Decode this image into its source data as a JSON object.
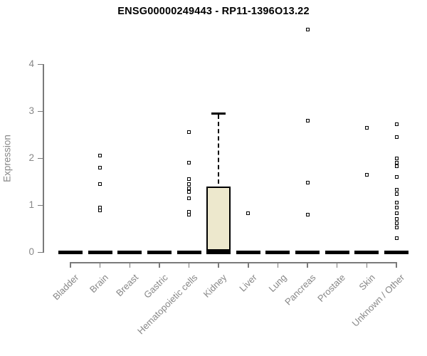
{
  "title": "ENSG00000249443 - RP11-1396O13.22",
  "colors": {
    "title_text": "#000000",
    "axis_text": "#878787",
    "axis_line": "#7a7a7a",
    "box_fill": "#EDE8CD",
    "ink": "#000000",
    "background": "#ffffff"
  },
  "chart_data": {
    "type": "boxplot",
    "title": "ENSG00000249443 - RP11-1396O13.22",
    "xlabel": "",
    "ylabel": "Expression",
    "ylim": [
      0,
      4
    ],
    "yticks": [
      0,
      1,
      2,
      3,
      4
    ],
    "grid": false,
    "legend": "none",
    "categories": [
      "Bladder",
      "Brain",
      "Breast",
      "Gastric",
      "Hematopoietic cells",
      "Kidney",
      "Liver",
      "Lung",
      "Pancreas",
      "Prostate",
      "Skin",
      "Unknown / Other"
    ],
    "series": [
      {
        "category": "Bladder",
        "median": 0,
        "q1": 0,
        "q3": 0,
        "whisker_low": 0,
        "whisker_high": 0,
        "outliers": []
      },
      {
        "category": "Brain",
        "median": 0,
        "q1": 0,
        "q3": 0,
        "whisker_low": 0,
        "whisker_high": 0,
        "outliers": [
          2.05,
          1.8,
          1.45,
          0.95,
          0.88
        ]
      },
      {
        "category": "Breast",
        "median": 0,
        "q1": 0,
        "q3": 0,
        "whisker_low": 0,
        "whisker_high": 0,
        "outliers": []
      },
      {
        "category": "Gastric",
        "median": 0,
        "q1": 0,
        "q3": 0,
        "whisker_low": 0,
        "whisker_high": 0,
        "outliers": []
      },
      {
        "category": "Hematopoietic cells",
        "median": 0,
        "q1": 0,
        "q3": 0,
        "whisker_low": 0,
        "whisker_high": 0,
        "outliers": [
          2.55,
          1.9,
          1.55,
          1.45,
          1.35,
          1.28,
          1.15,
          0.86,
          0.79
        ]
      },
      {
        "category": "Kidney",
        "median": 0,
        "q1": 0,
        "q3": 1.4,
        "whisker_low": 0,
        "whisker_high": 2.95,
        "outliers": []
      },
      {
        "category": "Liver",
        "median": 0,
        "q1": 0,
        "q3": 0,
        "whisker_low": 0,
        "whisker_high": 0,
        "outliers": [
          0.83
        ]
      },
      {
        "category": "Lung",
        "median": 0,
        "q1": 0,
        "q3": 0,
        "whisker_low": 0,
        "whisker_high": 0,
        "outliers": []
      },
      {
        "category": "Pancreas",
        "median": 0,
        "q1": 0,
        "q3": 0,
        "whisker_low": 0,
        "whisker_high": 0,
        "outliers": [
          4.73,
          2.8,
          1.47,
          0.8
        ]
      },
      {
        "category": "Prostate",
        "median": 0,
        "q1": 0,
        "q3": 0,
        "whisker_low": 0,
        "whisker_high": 0,
        "outliers": []
      },
      {
        "category": "Skin",
        "median": 0,
        "q1": 0,
        "q3": 0,
        "whisker_low": 0,
        "whisker_high": 0,
        "outliers": [
          2.65,
          1.64
        ]
      },
      {
        "category": "Unknown / Other",
        "median": 0,
        "q1": 0,
        "q3": 0,
        "whisker_low": 0,
        "whisker_high": 0,
        "outliers": [
          2.72,
          2.44,
          2.0,
          1.9,
          1.82,
          1.6,
          1.33,
          1.24,
          1.05,
          0.95,
          0.83,
          0.7,
          0.61,
          0.52,
          0.3
        ]
      }
    ]
  }
}
